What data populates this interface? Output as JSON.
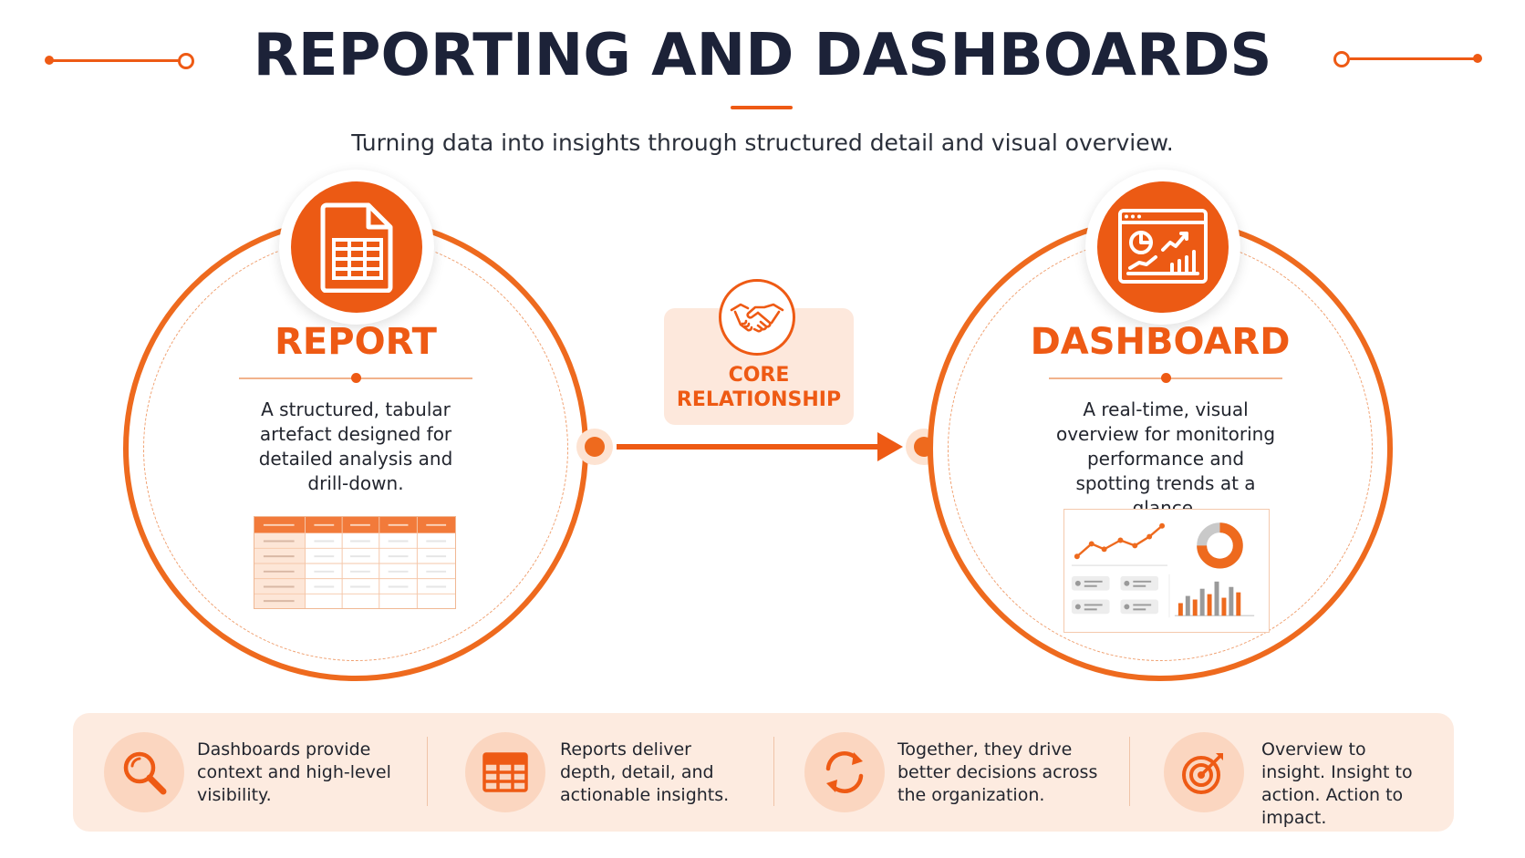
{
  "header": {
    "title": "REPORTING AND DASHBOARDS",
    "subtitle": "Turning data into insights through structured detail and visual overview."
  },
  "report": {
    "icon": "spreadsheet-document-icon",
    "title": "REPORT",
    "description": "A structured, tabular artefact designed for detailed analysis and drill-down."
  },
  "core": {
    "icon": "handshake-icon",
    "label": "CORE RELATIONSHIP"
  },
  "dashboard": {
    "icon": "dashboard-charts-icon",
    "title": "DASHBOARD",
    "description": "A real-time, visual overview for monitoring performance and spotting trends at a glance."
  },
  "benefits": [
    {
      "icon": "magnifier-icon",
      "text": "Dashboards provide context and high-level visibility."
    },
    {
      "icon": "table-grid-icon",
      "text": "Reports deliver depth, detail, and actionable insights."
    },
    {
      "icon": "refresh-cycle-icon",
      "text": "Together, they drive better decisions across the organization."
    },
    {
      "icon": "target-icon",
      "text": "Overview to insight. Insight to action. Action to impact."
    }
  ],
  "colors": {
    "accent": "#ee5a14",
    "title": "#1c2238",
    "light_accent": "#fdebe0"
  }
}
